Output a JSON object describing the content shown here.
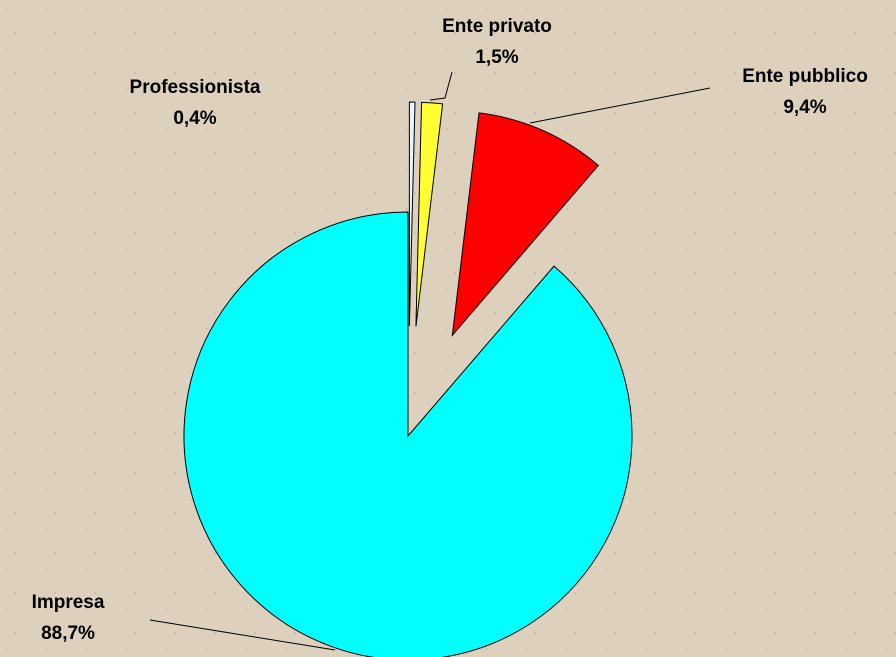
{
  "chart_data": {
    "type": "pie",
    "categories": [
      "Professionista",
      "Ente privato",
      "Ente pubblico",
      "Impresa"
    ],
    "values": [
      0.4,
      1.5,
      9.4,
      88.7
    ],
    "value_labels": [
      "0,4%",
      "1,5%",
      "9,4%",
      "88,7%"
    ],
    "colors": [
      "#e8f4ff",
      "#ffff33",
      "#ff0000",
      "#00ffff"
    ]
  }
}
